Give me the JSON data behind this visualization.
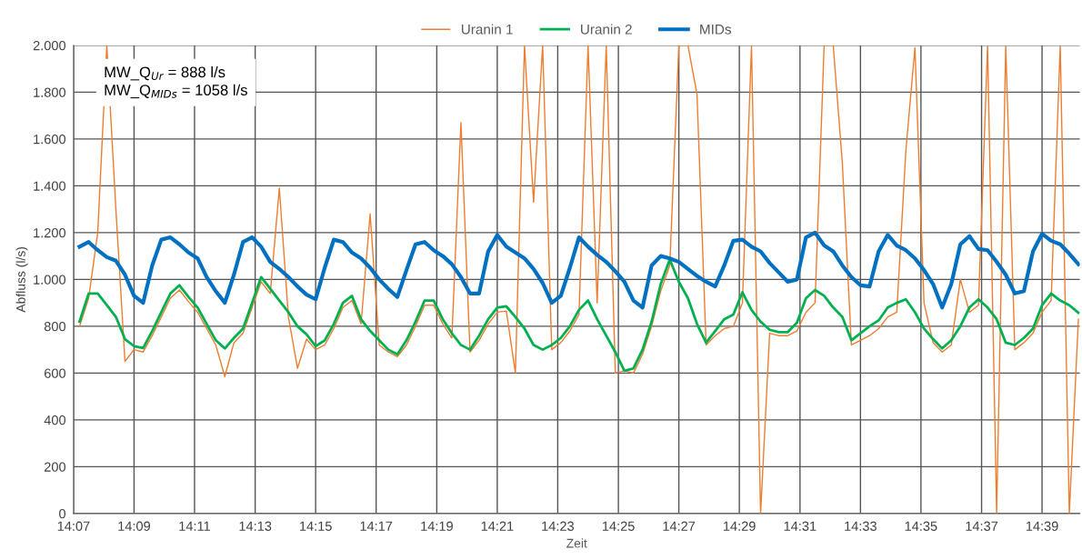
{
  "chart_data": {
    "type": "line",
    "xlabel": "Zeit",
    "ylabel": "Abfluss (l/s)",
    "x": [
      14.12,
      14.125,
      14.13,
      14.135,
      14.14,
      14.145,
      14.15,
      14.155,
      14.16,
      14.165,
      14.17,
      14.175,
      14.18,
      14.185,
      14.19,
      14.195,
      14.2,
      14.205,
      14.21,
      14.215,
      14.22,
      14.225,
      14.23,
      14.235,
      14.24,
      14.245,
      14.25,
      14.255,
      14.26,
      14.265,
      14.27,
      14.275,
      14.28,
      14.285,
      14.29,
      14.295,
      14.3,
      14.305,
      14.31,
      14.315,
      14.32,
      14.325,
      14.33,
      14.335,
      14.34,
      14.345,
      14.35,
      14.355,
      14.36,
      14.365,
      14.37,
      14.375,
      14.38,
      14.385,
      14.39,
      14.395,
      14.4,
      14.405,
      14.41,
      14.415,
      14.42,
      14.425,
      14.43,
      14.435,
      14.44,
      14.445,
      14.45,
      14.455,
      14.46,
      14.465,
      14.47,
      14.475,
      14.48,
      14.485,
      14.49,
      14.495,
      14.5,
      14.505,
      14.51,
      14.515,
      14.52,
      14.525,
      14.53,
      14.535,
      14.54,
      14.545,
      14.55,
      14.555,
      14.56,
      14.565,
      14.57,
      14.575,
      14.58,
      14.585,
      14.59,
      14.595,
      14.6,
      14.605,
      14.61,
      14.615,
      14.62,
      14.625,
      14.63,
      14.635,
      14.64,
      14.645,
      14.65,
      14.655,
      14.66,
      14.665,
      14.67
    ],
    "series": [
      {
        "name": "Uranin 1",
        "color": "#ed7d31",
        "values": [
          800,
          920,
          1200,
          2000,
          1300,
          650,
          700,
          690,
          760,
          840,
          920,
          955,
          905,
          860,
          790,
          720,
          585,
          730,
          770,
          880,
          990,
          940,
          1390,
          840,
          620,
          745,
          700,
          720,
          790,
          880,
          910,
          810,
          1280,
          720,
          690,
          670,
          720,
          800,
          890,
          890,
          810,
          750,
          1670,
          690,
          740,
          810,
          860,
          865,
          600,
          2000,
          1330,
          2000,
          700,
          730,
          780,
          850,
          2000,
          900,
          2000,
          600,
          610,
          600,
          680,
          800,
          950,
          1060,
          2000,
          2000,
          1790,
          720,
          760,
          790,
          800,
          900,
          2000,
          0,
          770,
          760,
          760,
          780,
          860,
          900,
          2000,
          2000,
          1500,
          720,
          740,
          760,
          790,
          840,
          860,
          1550,
          1990,
          900,
          730,
          690,
          720,
          1000,
          860,
          890,
          2000,
          0,
          2000,
          700,
          730,
          770,
          860,
          910,
          2000,
          0,
          830
        ]
      },
      {
        "name": "Uranin 2",
        "color": "#00b050",
        "values": [
          820,
          940,
          940,
          890,
          840,
          745,
          715,
          707,
          780,
          860,
          940,
          975,
          925,
          880,
          810,
          740,
          705,
          750,
          790,
          900,
          1010,
          960,
          910,
          860,
          800,
          765,
          715,
          740,
          810,
          900,
          930,
          830,
          780,
          740,
          700,
          680,
          740,
          820,
          910,
          910,
          830,
          770,
          720,
          700,
          760,
          830,
          880,
          885,
          840,
          790,
          720,
          700,
          720,
          750,
          800,
          870,
          910,
          830,
          760,
          690,
          610,
          620,
          700,
          820,
          980,
          1085,
          990,
          920,
          810,
          730,
          780,
          830,
          850,
          945,
          870,
          820,
          785,
          775,
          775,
          815,
          920,
          955,
          930,
          880,
          840,
          740,
          770,
          800,
          825,
          880,
          900,
          915,
          860,
          790,
          745,
          705,
          740,
          800,
          880,
          915,
          880,
          830,
          730,
          720,
          750,
          790,
          890,
          940,
          910,
          890,
          858
        ]
      },
      {
        "name": "MIDs",
        "color": "#0070c0",
        "values": [
          1140,
          1160,
          1125,
          1095,
          1080,
          1020,
          930,
          900,
          1060,
          1170,
          1180,
          1150,
          1115,
          1090,
          1010,
          950,
          900,
          1020,
          1160,
          1180,
          1140,
          1075,
          1045,
          1010,
          970,
          935,
          915,
          1050,
          1170,
          1160,
          1115,
          1090,
          1050,
          1000,
          960,
          925,
          1040,
          1150,
          1160,
          1125,
          1100,
          1065,
          1010,
          940,
          940,
          1120,
          1190,
          1140,
          1115,
          1090,
          1045,
          985,
          900,
          930,
          1050,
          1180,
          1140,
          1105,
          1075,
          1035,
          990,
          910,
          880,
          1060,
          1100,
          1090,
          1075,
          1045,
          1015,
          990,
          970,
          1060,
          1165,
          1170,
          1140,
          1120,
          1070,
          1030,
          990,
          1000,
          1180,
          1200,
          1145,
          1120,
          1060,
          1010,
          975,
          970,
          1120,
          1190,
          1145,
          1125,
          1090,
          1040,
          980,
          880,
          980,
          1150,
          1185,
          1130,
          1125,
          1075,
          1020,
          940,
          950,
          1120,
          1195,
          1165,
          1150,
          1110,
          1065
        ]
      }
    ],
    "xlim": [
      14.1167,
      14.6708
    ],
    "xticks": [
      {
        "value": 14.1167,
        "label": "14:07"
      },
      {
        "value": 14.15,
        "label": "14:09"
      },
      {
        "value": 14.1833,
        "label": "14:11"
      },
      {
        "value": 14.2167,
        "label": "14:13"
      },
      {
        "value": 14.25,
        "label": "14:15"
      },
      {
        "value": 14.2833,
        "label": "14:17"
      },
      {
        "value": 14.3167,
        "label": "14:19"
      },
      {
        "value": 14.35,
        "label": "14:21"
      },
      {
        "value": 14.3833,
        "label": "14:23"
      },
      {
        "value": 14.4167,
        "label": "14:25"
      },
      {
        "value": 14.45,
        "label": "14:27"
      },
      {
        "value": 14.4833,
        "label": "14:29"
      },
      {
        "value": 14.5167,
        "label": "14:31"
      },
      {
        "value": 14.55,
        "label": "14:33"
      },
      {
        "value": 14.5833,
        "label": "14:35"
      },
      {
        "value": 14.6167,
        "label": "14:37"
      },
      {
        "value": 14.65,
        "label": "14:39"
      }
    ],
    "ylim": [
      0,
      2000
    ],
    "yticks": [
      0,
      200,
      400,
      600,
      800,
      {
        "value": 1000,
        "label": "1.000"
      },
      {
        "value": 1200,
        "label": "1.200"
      },
      {
        "value": 1400,
        "label": "1.400"
      },
      {
        "value": 1600,
        "label": "1.600"
      },
      {
        "value": 1800,
        "label": "1.800"
      },
      {
        "value": 2000,
        "label": "2.000"
      }
    ],
    "annotations": [
      "MW_Q$_{Ur}$ = 888 l/s",
      "MW_Q$_{MIDs}$ = 1058 l/s"
    ],
    "grid": true,
    "legend": "top",
    "marker": "none",
    "line_style": "solid"
  }
}
